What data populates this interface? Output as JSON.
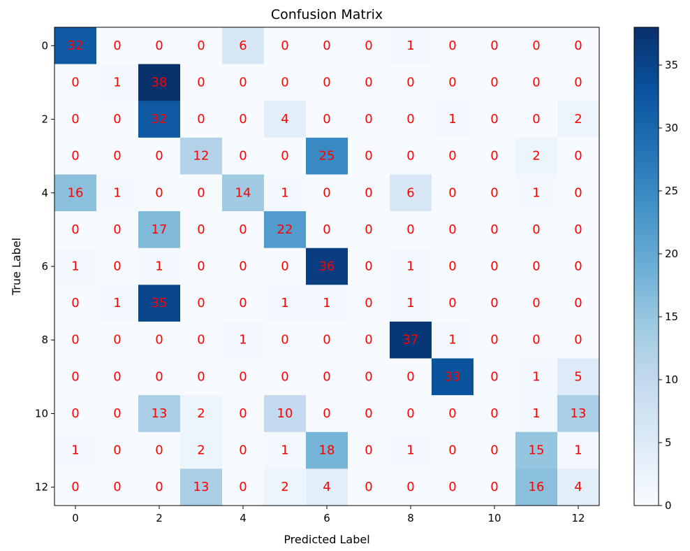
{
  "chart_data": {
    "type": "heatmap",
    "title": "Confusion Matrix",
    "xlabel": "Predicted Label",
    "ylabel": "True Label",
    "x_categories": [
      "0",
      "1",
      "2",
      "3",
      "4",
      "5",
      "6",
      "7",
      "8",
      "9",
      "10",
      "11",
      "12"
    ],
    "y_categories": [
      "0",
      "1",
      "2",
      "3",
      "4",
      "5",
      "6",
      "7",
      "8",
      "9",
      "10",
      "11",
      "12"
    ],
    "x_tick_labels": [
      "0",
      "2",
      "4",
      "6",
      "8",
      "10",
      "12"
    ],
    "y_tick_labels": [
      "0",
      "2",
      "4",
      "6",
      "8",
      "10",
      "12"
    ],
    "values": [
      [
        32,
        0,
        0,
        0,
        6,
        0,
        0,
        0,
        1,
        0,
        0,
        0,
        0
      ],
      [
        0,
        1,
        38,
        0,
        0,
        0,
        0,
        0,
        0,
        0,
        0,
        0,
        0
      ],
      [
        0,
        0,
        32,
        0,
        0,
        4,
        0,
        0,
        0,
        1,
        0,
        0,
        2
      ],
      [
        0,
        0,
        0,
        12,
        0,
        0,
        25,
        0,
        0,
        0,
        0,
        2,
        0
      ],
      [
        16,
        1,
        0,
        0,
        14,
        1,
        0,
        0,
        6,
        0,
        0,
        1,
        0
      ],
      [
        0,
        0,
        17,
        0,
        0,
        22,
        0,
        0,
        0,
        0,
        0,
        0,
        0
      ],
      [
        1,
        0,
        1,
        0,
        0,
        0,
        36,
        0,
        1,
        0,
        0,
        0,
        0
      ],
      [
        0,
        1,
        35,
        0,
        0,
        1,
        1,
        0,
        1,
        0,
        0,
        0,
        0
      ],
      [
        0,
        0,
        0,
        0,
        1,
        0,
        0,
        0,
        37,
        1,
        0,
        0,
        0
      ],
      [
        0,
        0,
        0,
        0,
        0,
        0,
        0,
        0,
        0,
        33,
        0,
        1,
        5
      ],
      [
        0,
        0,
        13,
        2,
        0,
        10,
        0,
        0,
        0,
        0,
        0,
        1,
        13
      ],
      [
        1,
        0,
        0,
        2,
        0,
        1,
        18,
        0,
        1,
        0,
        0,
        15,
        1
      ],
      [
        0,
        0,
        0,
        13,
        0,
        2,
        4,
        0,
        0,
        0,
        0,
        16,
        4
      ]
    ],
    "colormap": "Blues",
    "annotation_color": "#ff0000",
    "colorbar": {
      "range": [
        0,
        38
      ],
      "ticks": [
        0,
        5,
        10,
        15,
        20,
        25,
        30,
        35
      ],
      "tick_labels": [
        "0",
        "5",
        "10",
        "15",
        "20",
        "25",
        "30",
        "35"
      ]
    }
  }
}
